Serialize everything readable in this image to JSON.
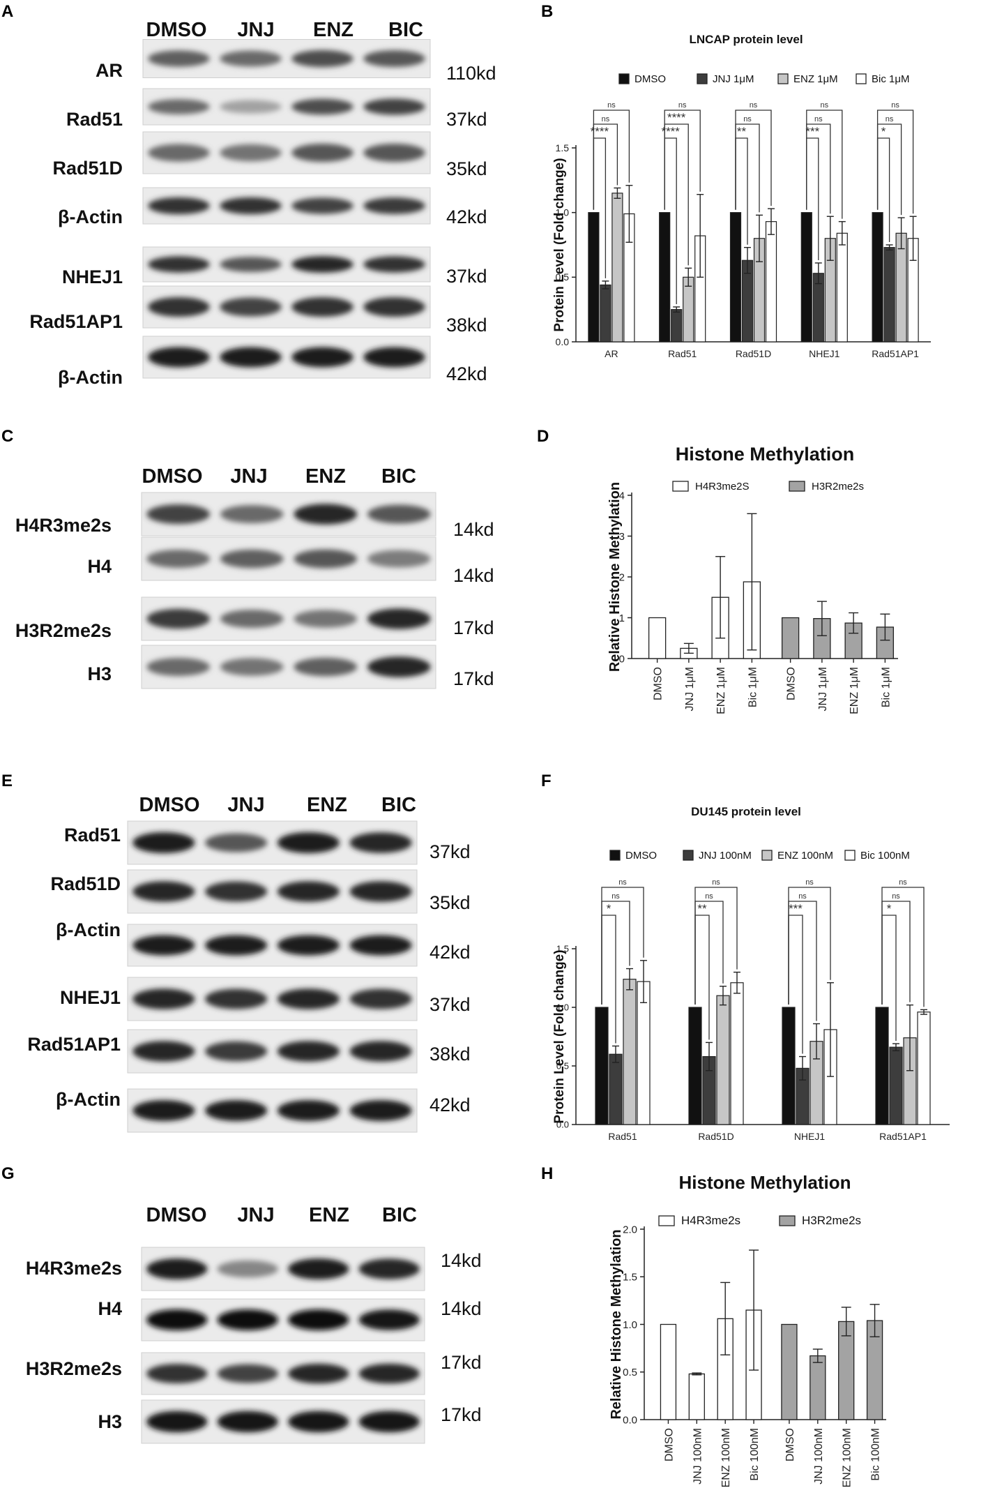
{
  "panels": {
    "A": "A",
    "B": "B",
    "C": "C",
    "D": "D",
    "E": "E",
    "F": "F",
    "G": "G",
    "H": "H"
  },
  "colors": {
    "DMSO": "#111111",
    "JNJ": "#3d3d3d",
    "ENZ": "#c6c6c6",
    "Bic": "#ffffff",
    "H4": "#ffffff",
    "H3": "#a3a3a3"
  },
  "blots": {
    "A": {
      "lanes": [
        "DMSO",
        "JNJ",
        "ENZ",
        "BIC"
      ],
      "rows": [
        {
          "label": "AR",
          "kd": "110kd",
          "intensity": [
            0.55,
            0.5,
            0.65,
            0.6
          ]
        },
        {
          "label": "Rad51",
          "kd": "37kd",
          "intensity": [
            0.5,
            0.2,
            0.65,
            0.7
          ]
        },
        {
          "label": "Rad51D",
          "kd": "35kd",
          "intensity": [
            0.5,
            0.45,
            0.6,
            0.6
          ]
        },
        {
          "label": "β-Actin",
          "kd": "42kd",
          "intensity": [
            0.8,
            0.8,
            0.7,
            0.75
          ]
        },
        {
          "label": "NHEJ1",
          "kd": "37kd",
          "intensity": [
            0.8,
            0.6,
            0.85,
            0.8
          ]
        },
        {
          "label": "Rad51AP1",
          "kd": "38kd",
          "intensity": [
            0.8,
            0.7,
            0.8,
            0.8
          ]
        },
        {
          "label": "β-Actin",
          "kd": "42kd",
          "intensity": [
            0.9,
            0.9,
            0.9,
            0.9
          ]
        }
      ]
    },
    "C": {
      "lanes": [
        "DMSO",
        "JNJ",
        "ENZ",
        "BIC"
      ],
      "rows": [
        {
          "label": "H4R3me2s",
          "kd": "14kd",
          "intensity": [
            0.7,
            0.5,
            0.85,
            0.6
          ]
        },
        {
          "label": "H4",
          "kd": "14kd",
          "intensity": [
            0.5,
            0.55,
            0.6,
            0.4
          ]
        },
        {
          "label": "H3R2me2s",
          "kd": "17kd",
          "intensity": [
            0.75,
            0.5,
            0.45,
            0.85
          ]
        },
        {
          "label": "H3",
          "kd": "17kd",
          "intensity": [
            0.5,
            0.45,
            0.55,
            0.85
          ]
        }
      ]
    },
    "E": {
      "lanes": [
        "DMSO",
        "JNJ",
        "ENZ",
        "BIC"
      ],
      "rows": [
        {
          "label": "Rad51",
          "kd": "37kd",
          "intensity": [
            0.9,
            0.6,
            0.9,
            0.85
          ]
        },
        {
          "label": "Rad51D",
          "kd": "35kd",
          "intensity": [
            0.85,
            0.8,
            0.85,
            0.85
          ]
        },
        {
          "label": "β-Actin",
          "kd": "42kd",
          "intensity": [
            0.9,
            0.9,
            0.9,
            0.9
          ]
        },
        {
          "label": "NHEJ1",
          "kd": "37kd",
          "intensity": [
            0.85,
            0.8,
            0.85,
            0.8
          ]
        },
        {
          "label": "Rad51AP1",
          "kd": "38kd",
          "intensity": [
            0.85,
            0.75,
            0.85,
            0.85
          ]
        },
        {
          "label": "β-Actin",
          "kd": "42kd",
          "intensity": [
            0.9,
            0.9,
            0.9,
            0.9
          ]
        }
      ]
    },
    "G": {
      "lanes": [
        "DMSO",
        "JNJ",
        "ENZ",
        "BIC"
      ],
      "rows": [
        {
          "label": "H4R3me2s",
          "kd": "14kd",
          "intensity": [
            0.9,
            0.35,
            0.9,
            0.85
          ]
        },
        {
          "label": "H4",
          "kd": "14kd",
          "intensity": [
            1.0,
            1.0,
            1.0,
            0.95
          ]
        },
        {
          "label": "H3R2me2s",
          "kd": "17kd",
          "intensity": [
            0.8,
            0.7,
            0.85,
            0.85
          ]
        },
        {
          "label": "H3",
          "kd": "17kd",
          "intensity": [
            0.95,
            0.95,
            0.95,
            0.95
          ]
        }
      ]
    }
  },
  "chart_data": [
    {
      "panel": "B",
      "type": "bar",
      "title": "LNCAP protein level",
      "ylabel": "Protein Level (Fold change)",
      "xlabel": "",
      "ylim": [
        0,
        1.5
      ],
      "yticks": [
        "0.0",
        "0.5",
        "1.0",
        "1.5"
      ],
      "categories": [
        "AR",
        "Rad51",
        "Rad51D",
        "NHEJ1",
        "Rad51AP1"
      ],
      "series": [
        {
          "name": "DMSO",
          "color_key": "DMSO",
          "values": [
            1.0,
            1.0,
            1.0,
            1.0,
            1.0
          ],
          "errors": [
            0,
            0,
            0,
            0,
            0
          ]
        },
        {
          "name": "JNJ 1μM",
          "color_key": "JNJ",
          "values": [
            0.44,
            0.25,
            0.63,
            0.53,
            0.73
          ],
          "errors": [
            0.03,
            0.02,
            0.1,
            0.08,
            0.02
          ]
        },
        {
          "name": "ENZ 1μM",
          "color_key": "ENZ",
          "values": [
            1.15,
            0.5,
            0.8,
            0.8,
            0.84
          ],
          "errors": [
            0.04,
            0.07,
            0.18,
            0.17,
            0.12
          ]
        },
        {
          "name": "Bic 1μM",
          "color_key": "Bic",
          "values": [
            0.99,
            0.82,
            0.93,
            0.84,
            0.8
          ],
          "errors": [
            0.22,
            0.32,
            0.1,
            0.09,
            0.17
          ]
        }
      ],
      "significance": [
        [
          {
            "label": "****",
            "to": 1
          },
          {
            "label": "ns",
            "to": 2
          },
          {
            "label": "ns",
            "to": 3
          }
        ],
        [
          {
            "label": "****",
            "to": 1
          },
          {
            "label": "****",
            "to": 2
          },
          {
            "label": "ns",
            "to": 3
          }
        ],
        [
          {
            "label": "**",
            "to": 1
          },
          {
            "label": "ns",
            "to": 2
          },
          {
            "label": "ns",
            "to": 3
          }
        ],
        [
          {
            "label": "***",
            "to": 1
          },
          {
            "label": "ns",
            "to": 2
          },
          {
            "label": "ns",
            "to": 3
          }
        ],
        [
          {
            "label": "*",
            "to": 1
          },
          {
            "label": "ns",
            "to": 2
          },
          {
            "label": "ns",
            "to": 3
          }
        ]
      ],
      "legend_position": "top"
    },
    {
      "panel": "D",
      "type": "bar",
      "title": "Histone Methylation",
      "ylabel": "Relative Histone Methylation",
      "xlabel": "",
      "ylim": [
        0,
        4
      ],
      "yticks": [
        "0",
        "1",
        "2",
        "3",
        "4"
      ],
      "categories": [
        "DMSO",
        "JNJ 1μM",
        "ENZ 1μM",
        "Bic 1μM"
      ],
      "series": [
        {
          "name": "H4R3me2S",
          "color_key": "H4",
          "values": [
            1.0,
            0.25,
            1.5,
            1.88
          ],
          "errors": [
            0,
            0.12,
            1.0,
            1.67
          ]
        },
        {
          "name": "H3R2me2s",
          "color_key": "H3",
          "values": [
            1.0,
            0.98,
            0.87,
            0.77
          ],
          "errors": [
            0,
            0.42,
            0.25,
            0.32
          ]
        }
      ],
      "legend_position": "top"
    },
    {
      "panel": "F",
      "type": "bar",
      "title": "DU145 protein level",
      "ylabel": "Protein Level (Fold change)",
      "xlabel": "",
      "ylim": [
        0,
        1.5
      ],
      "yticks": [
        "0.0",
        "0.5",
        "1.0",
        "1.5"
      ],
      "categories": [
        "Rad51",
        "Rad51D",
        "NHEJ1",
        "Rad51AP1"
      ],
      "series": [
        {
          "name": "DMSO",
          "color_key": "DMSO",
          "values": [
            1.0,
            1.0,
            1.0,
            1.0
          ],
          "errors": [
            0,
            0,
            0,
            0
          ]
        },
        {
          "name": "JNJ 100nM",
          "color_key": "JNJ",
          "values": [
            0.6,
            0.58,
            0.48,
            0.66
          ],
          "errors": [
            0.07,
            0.12,
            0.1,
            0.03
          ]
        },
        {
          "name": "ENZ 100nM",
          "color_key": "ENZ",
          "values": [
            1.24,
            1.1,
            0.71,
            0.74
          ],
          "errors": [
            0.09,
            0.08,
            0.15,
            0.28
          ]
        },
        {
          "name": "Bic 100nM",
          "color_key": "Bic",
          "values": [
            1.22,
            1.21,
            0.81,
            0.96
          ],
          "errors": [
            0.18,
            0.09,
            0.4,
            0.02
          ]
        }
      ],
      "significance": [
        [
          {
            "label": "*",
            "to": 1
          },
          {
            "label": "ns",
            "to": 2
          },
          {
            "label": "ns",
            "to": 3
          }
        ],
        [
          {
            "label": "**",
            "to": 1
          },
          {
            "label": "ns",
            "to": 2
          },
          {
            "label": "ns",
            "to": 3
          }
        ],
        [
          {
            "label": "***",
            "to": 1
          },
          {
            "label": "ns",
            "to": 2
          },
          {
            "label": "ns",
            "to": 3
          }
        ],
        [
          {
            "label": "*",
            "to": 1
          },
          {
            "label": "ns",
            "to": 2
          },
          {
            "label": "ns",
            "to": 3
          }
        ]
      ],
      "legend_position": "top"
    },
    {
      "panel": "H",
      "type": "bar",
      "title": "Histone Methylation",
      "ylabel": "Relative Histone Methylation",
      "xlabel": "",
      "ylim": [
        0,
        2.0
      ],
      "yticks": [
        "0.0",
        "0.5",
        "1.0",
        "1.5",
        "2.0"
      ],
      "categories": [
        "DMSO",
        "JNJ 100nM",
        "ENZ 100nM",
        "Bic 100nM"
      ],
      "series": [
        {
          "name": "H4R3me2s",
          "color_key": "H4",
          "values": [
            1.0,
            0.48,
            1.06,
            1.15
          ],
          "errors": [
            0,
            0.01,
            0.38,
            0.63
          ]
        },
        {
          "name": "H3R2me2s",
          "color_key": "H3",
          "values": [
            1.0,
            0.67,
            1.03,
            1.04
          ],
          "errors": [
            0,
            0.07,
            0.15,
            0.17
          ]
        }
      ],
      "legend_position": "top"
    }
  ]
}
